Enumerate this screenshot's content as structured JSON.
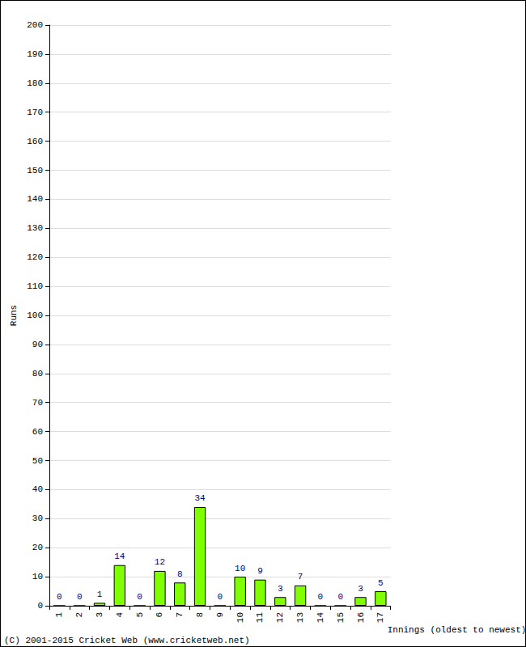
{
  "chart_data": {
    "type": "bar",
    "x_label": "Innings (oldest to newest)",
    "y_label": "Runs",
    "annotations": [
      "(C) 2001-2015 Cricket Web (www.cricketweb.net)"
    ],
    "categories": [
      "1",
      "2",
      "3",
      "4",
      "5",
      "6",
      "7",
      "8",
      "9",
      "10",
      "11",
      "12",
      "13",
      "14",
      "15",
      "16",
      "17"
    ],
    "values": [
      0,
      0,
      1,
      14,
      0,
      12,
      8,
      34,
      0,
      10,
      9,
      3,
      7,
      0,
      0,
      3,
      5
    ],
    "color": "#80ff00",
    "ylim": [
      0,
      200
    ],
    "yticks": [
      0,
      10,
      20,
      30,
      40,
      50,
      60,
      70,
      80,
      90,
      100,
      110,
      120,
      130,
      140,
      150,
      160,
      170,
      180,
      190,
      200
    ],
    "grid": true,
    "data_labels": true
  }
}
